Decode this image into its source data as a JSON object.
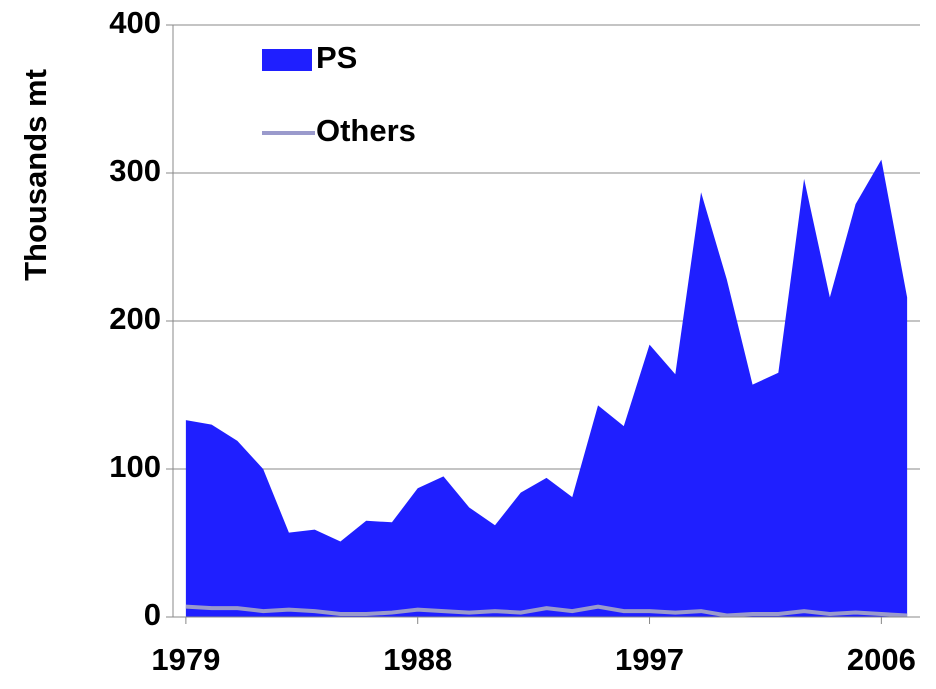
{
  "chart_data": {
    "type": "area-line",
    "y_label": "Thousands mt",
    "x": [
      1979,
      1980,
      1981,
      1982,
      1983,
      1984,
      1985,
      1986,
      1987,
      1988,
      1989,
      1990,
      1991,
      1992,
      1993,
      1994,
      1995,
      1996,
      1997,
      1998,
      1999,
      2000,
      2001,
      2002,
      2003,
      2004,
      2005,
      2006,
      2007
    ],
    "series": [
      {
        "name": "PS",
        "color": "#1f1fff",
        "style": "area",
        "values": [
          133,
          130,
          119,
          100,
          57,
          59,
          51,
          65,
          64,
          87,
          95,
          74,
          62,
          84,
          94,
          81,
          143,
          129,
          184,
          164,
          287,
          228,
          157,
          165,
          296,
          216,
          279,
          309,
          216
        ]
      },
      {
        "name": "Others",
        "color": "#9a9acc",
        "style": "line",
        "values": [
          7,
          6,
          6,
          4,
          5,
          4,
          2,
          2,
          3,
          5,
          4,
          3,
          4,
          3,
          6,
          4,
          7,
          4,
          4,
          3,
          4,
          1,
          2,
          2,
          4,
          2,
          3,
          2,
          1
        ]
      }
    ],
    "xlim": [
      1978.5,
      2007.5
    ],
    "xticks": [
      1979,
      1988,
      1997,
      2006
    ],
    "ylim": [
      0,
      400
    ],
    "yticks": [
      0,
      100,
      200,
      300,
      400
    ],
    "grid": true
  }
}
